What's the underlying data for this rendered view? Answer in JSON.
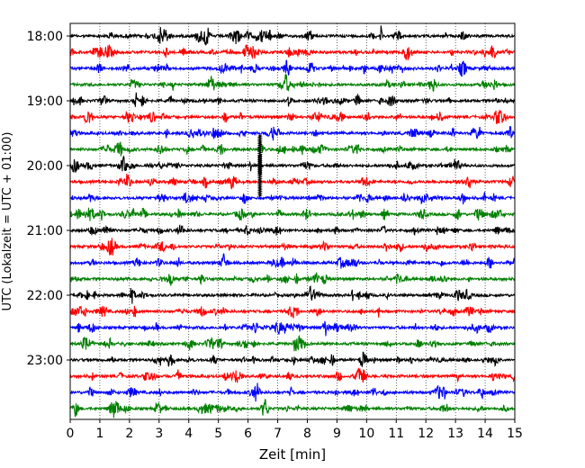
{
  "chart_data": {
    "type": "line",
    "title": "",
    "xlabel": "Zeit  [min]",
    "ylabel": "UTC (Lokalzeit = UTC + 01:00)",
    "xlim": [
      0,
      15
    ],
    "x_ticks": [
      0,
      1,
      2,
      3,
      4,
      5,
      6,
      7,
      8,
      9,
      10,
      11,
      12,
      13,
      14,
      15
    ],
    "x_tick_labels": [
      "0",
      "1",
      "2",
      "3",
      "4",
      "5",
      "6",
      "7",
      "8",
      "9",
      "10",
      "11",
      "12",
      "13",
      "14",
      "15"
    ],
    "x_grid": "dotted vertical lines at each minute",
    "y_tick_labels": [
      "18:00",
      "19:00",
      "20:00",
      "21:00",
      "22:00",
      "23:00"
    ],
    "trace_start_times": [
      "18:00",
      "18:15",
      "18:30",
      "18:45",
      "19:00",
      "19:15",
      "19:30",
      "19:45",
      "20:00",
      "20:15",
      "20:30",
      "20:45",
      "21:00",
      "21:15",
      "21:30",
      "21:45",
      "22:00",
      "22:15",
      "22:30",
      "22:45",
      "23:00",
      "23:15",
      "23:30",
      "23:45"
    ],
    "trace_colors": [
      "#000000",
      "#ff0000",
      "#0000ff",
      "#008000"
    ],
    "events": [
      {
        "trace": "19:45",
        "minute": 6.4,
        "description": "large vertical spike"
      },
      {
        "trace": "20:00",
        "minute": 6.4,
        "description": "large vertical spike"
      },
      {
        "trace": "20:15",
        "minute": 6.4,
        "description": "large vertical spike"
      },
      {
        "trace": "20:30",
        "minute": 6.4,
        "description": "large vertical spike"
      }
    ],
    "legend": "none"
  }
}
